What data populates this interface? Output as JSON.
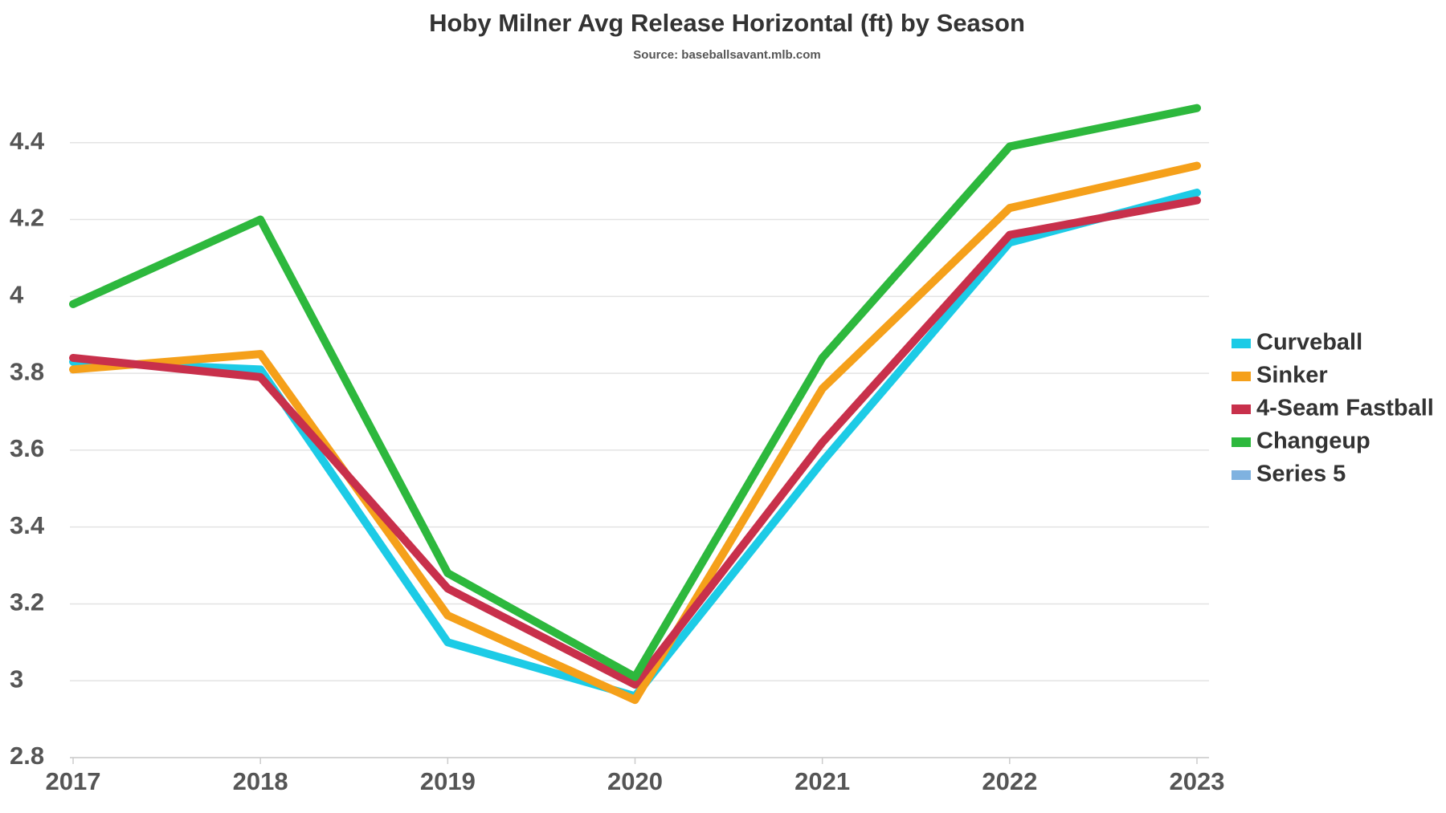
{
  "chart_data": {
    "type": "line",
    "title": "Hoby Milner Avg Release Horizontal (ft) by Season",
    "subtitle": "Source: baseballsavant.mlb.com",
    "categories": [
      "2017",
      "2018",
      "2019",
      "2020",
      "2021",
      "2022",
      "2023"
    ],
    "series": [
      {
        "name": "Curveball",
        "color": "#1ccbe6",
        "values": [
          3.83,
          3.81,
          3.1,
          2.96,
          3.57,
          4.14,
          4.27
        ]
      },
      {
        "name": "Sinker",
        "color": "#f5a01a",
        "values": [
          3.81,
          3.85,
          3.17,
          2.95,
          3.76,
          4.23,
          4.34
        ]
      },
      {
        "name": "4-Seam Fastball",
        "color": "#c8304b",
        "values": [
          3.84,
          3.79,
          3.24,
          2.99,
          3.62,
          4.16,
          4.25
        ]
      },
      {
        "name": "Changeup",
        "color": "#2db83d",
        "values": [
          3.98,
          4.2,
          3.28,
          3.01,
          3.84,
          4.39,
          4.49
        ]
      },
      {
        "name": "Series 5",
        "color": "#7fb2e0",
        "values": [
          null,
          null,
          null,
          null,
          null,
          null,
          null
        ]
      }
    ],
    "ylim": [
      2.8,
      4.6
    ],
    "yticks": [
      2.8,
      3,
      3.2,
      3.4,
      3.6,
      3.8,
      4,
      4.2,
      4.4
    ],
    "grid": true,
    "legend": "right"
  }
}
